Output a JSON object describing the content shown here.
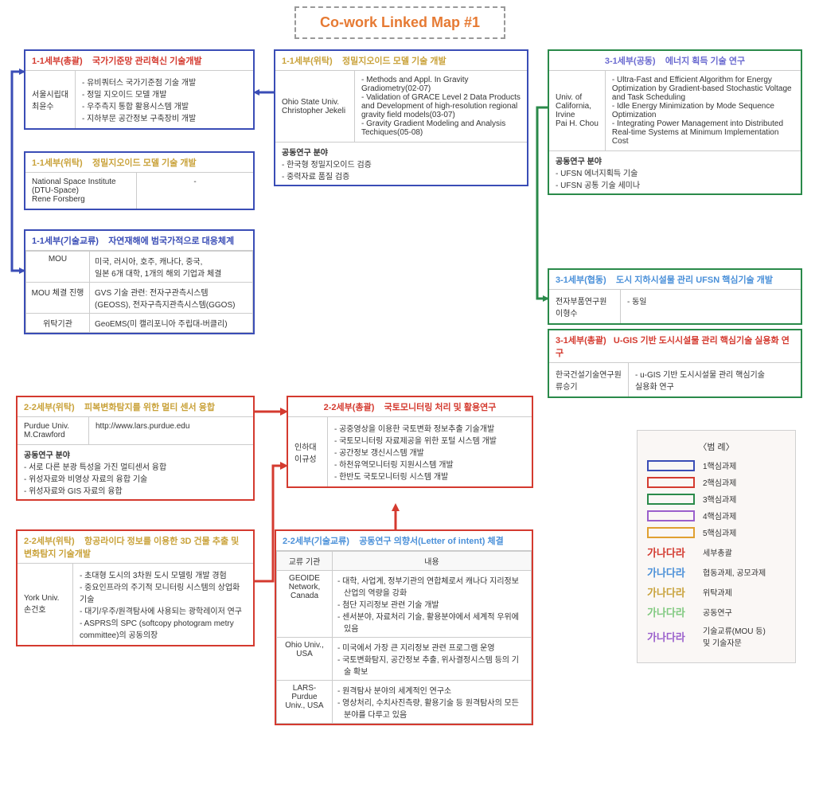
{
  "title": "Co-work Linked Map #1",
  "colors": {
    "task1": "#3a4db6",
    "task2": "#d43a2f",
    "task3": "#2a8a4a",
    "task4": "#9a5fcc",
    "task5": "#e0a030",
    "role_general": "#d43a2f",
    "role_coop": "#4a90d9",
    "role_commission": "#c9a23a",
    "role_joint": "#7fc97f",
    "role_exchange": "#9a5fcc",
    "title_color": "#e67a33",
    "legend_bg": "#faf7f5"
  },
  "boxes": {
    "b1": {
      "header_prefix": "1-1세부(총괄)",
      "header_title": "국가기준망 관리혁신 기술개발",
      "left": "서울시립대\n최윤수",
      "items": [
        "유비쿼터스 국가기준점 기술 개발",
        "정밀 지오이드 모델 개발",
        "우주측지 통합 활용시스템 개발",
        "지하부문 공간정보 구축장비 개발"
      ],
      "border": "#3a4db6",
      "header_color": "#d43a2f"
    },
    "b2": {
      "header_prefix": "1-1세부(위탁)",
      "header_title": "정밀지오이드 모델 기술 개발",
      "row_left": "National Space Institute\n(DTU-Space)\nRene Forsberg",
      "row_right": "-",
      "border": "#3a4db6",
      "header_color": "#c9a23a"
    },
    "b3": {
      "header_prefix": "1-1세부(기술교류)",
      "header_title": "자연재해에 범국가적으로 대응체계",
      "rows": [
        {
          "l": "MOU",
          "r": "미국, 러시아, 호주, 캐나다, 중국,\n일본 6개 대학, 1개의 해외 기업과 체결"
        },
        {
          "l": "MOU 체결 진행",
          "r": "GVS 기술 관련: 전자구관측시스템\n(GEOSS), 전자구측지관측시스템(GGOS)"
        },
        {
          "l": "위탁기관",
          "r": "GeoEMS(미 캘리포니아 주립대-버클리)"
        }
      ],
      "border": "#3a4db6",
      "header_color": "#3a4db6"
    },
    "b4": {
      "header_prefix": "1-1세부(위탁)",
      "header_title": "정밀지오이드 모델 기술 개발",
      "left": "Ohio State Univ.\nChristopher Jekeli",
      "items": [
        "Methods and Appl. In Gravity Gradiometry(02-07)",
        "Validation of GRACE Level 2 Data Products and Development of high-resolution regional gravity field models(03-07)",
        "Gravity Gradient Modeling and Analysis Techiques(05-08)"
      ],
      "footer_label": "공동연구 분야",
      "footer_items": [
        "한국형 정밀지오이드 검증",
        "중력자료 품질 검증"
      ],
      "border": "#3a4db6",
      "header_color": "#c9a23a"
    },
    "b5": {
      "header_prefix": "3-1세부(공동)",
      "header_title": "에너지 획득 기술 연구",
      "left": "Univ. of\nCalifornia,\nIrvine\nPai H. Chou",
      "items": [
        "Ultra-Fast and Efficient Algorithm for Energy Optimization by Gradient-based Stochastic Voltage and Task Scheduling",
        "Idle Energy Minimization by Mode Sequence Optimization",
        "Integrating Power Management into Distributed Real-time Systems at Minimum Implementation Cost"
      ],
      "footer_label": "공동연구 분야",
      "footer_items": [
        "UFSN 에너지획득 기술",
        "UFSN 공통 기술 세미나"
      ],
      "border": "#2a8a4a",
      "header_color": "#6a6ad0"
    },
    "b6": {
      "header_prefix": "3-1세부(협동)",
      "header_title": "도시 지하시설물 관리 UFSN 핵심기술 개발",
      "row_left": "전자부품연구원\n이형수",
      "row_right": "-  동일",
      "border": "#2a8a4a",
      "header_color": "#4a90d9"
    },
    "b7": {
      "header_prefix": "3-1세부(총괄)",
      "header_title": "U-GIS 기반 도시시설물 관리 핵심기술 실용화 연구",
      "row_left": "한국건설기술연구원\n류승기",
      "row_right": "-  u-GIS 기반 도시시설물 관리 핵심기술\n실용화 연구",
      "border": "#2a8a4a",
      "header_color": "#d43a2f"
    },
    "b8": {
      "header_prefix": "2-2세부(위탁)",
      "header_title": "피복변화탐지를 위한 멀티 센서 융합",
      "row_left": "Purdue Univ.\nM.Crawford",
      "row_right": "http://www.lars.purdue.edu",
      "footer_label": "공동연구 분야",
      "footer_items": [
        "서로 다른 분광 특성을 가진 멀티센서 융합",
        "위성자료와 비영상 자료의 융합 기술",
        "위성자료와 GIS 자료의 융합"
      ],
      "border": "#d43a2f",
      "header_color": "#c9a23a"
    },
    "b9": {
      "header_prefix": "2-2세부(위탁)",
      "header_title": "항공라이다 정보를 이용한 3D 건물 추출  및 변화탐지 기술개발",
      "left": "York Univ.\n손건호",
      "items": [
        "초대형 도시의 3차원 도시 모델링 개발 경험",
        "중요인프라의 주기적 모니터링 시스템의 상업화 기술",
        "대기/우주/원격탐사에 사용되는 광학레이저 연구",
        "ASPRS의 SPC (softcopy photogram metry committee)의 공동의장"
      ],
      "border": "#d43a2f",
      "header_color": "#c9a23a"
    },
    "b10": {
      "header_prefix": "2-2세부(총괄)",
      "header_title": "국토모니터링 처리 및 활용연구",
      "left": "인하대\n이규성",
      "items": [
        "공중영상을 이용한 국토변화 정보추출 기술개발",
        "국토모니터링 자료제공을 위한 포털 시스템 개발",
        "공간정보 갱신시스템 개발",
        "하천유역모니터링 지원시스템 개발",
        "한반도 국토모니터링 시스템 개발"
      ],
      "border": "#d43a2f",
      "header_color": "#d43a2f"
    },
    "b11": {
      "header_prefix": "2-2세부(기술교류)",
      "header_title": "공동연구 의향서(Letter of intent) 체결",
      "columns": [
        "교류 기관",
        "내용"
      ],
      "rows": [
        {
          "l": "GEOIDE\nNetwork,\nCanada",
          "items": [
            "대학, 사업계, 정부기관의 연합체로서 캐나다 지리정보 산업의 역량을 강화",
            "첨단 지리정보 관련 기술 개발",
            "센서분야, 자료처리 기술, 활용분야에서 세계적 우위에 있음"
          ]
        },
        {
          "l": "Ohio Univ.,\nUSA",
          "items": [
            "미국에서 가장 큰 지리정보 관련 프로그램 운영",
            "국토변화탐지, 공간정보 추출, 위사결정시스템 등의 기술 확보"
          ]
        },
        {
          "l": "LARS-\nPurdue\nUniv., USA",
          "items": [
            "원격탐사 분야의 세계적인 연구소",
            "영상처리, 수치사진측량, 활용기술 등 원격탐사의 모든 분야를 다루고 있음"
          ]
        }
      ],
      "border": "#d43a2f",
      "header_color": "#4a90d9"
    }
  },
  "legend": {
    "title": "〈범 례〉",
    "swatches": [
      {
        "color": "#3a4db6",
        "label": "1핵심과제"
      },
      {
        "color": "#d43a2f",
        "label": "2핵심과제"
      },
      {
        "color": "#2a8a4a",
        "label": "3핵심과제"
      },
      {
        "color": "#9a5fcc",
        "label": "4핵심과제"
      },
      {
        "color": "#e0a030",
        "label": "5핵심과제"
      }
    ],
    "text_rows": [
      {
        "color": "#d43a2f",
        "sample": "가나다라",
        "label": "세부총괄"
      },
      {
        "color": "#4a90d9",
        "sample": "가나다라",
        "label": "협동과제, 공모과제"
      },
      {
        "color": "#c9a23a",
        "sample": "가나다라",
        "label": "위탁과제"
      },
      {
        "color": "#7fc97f",
        "sample": "가나다라",
        "label": "공동연구"
      },
      {
        "color": "#9a5fcc",
        "sample": "가나다라",
        "label": "기술교류(MOU 등)\n및 기술자문"
      }
    ]
  }
}
